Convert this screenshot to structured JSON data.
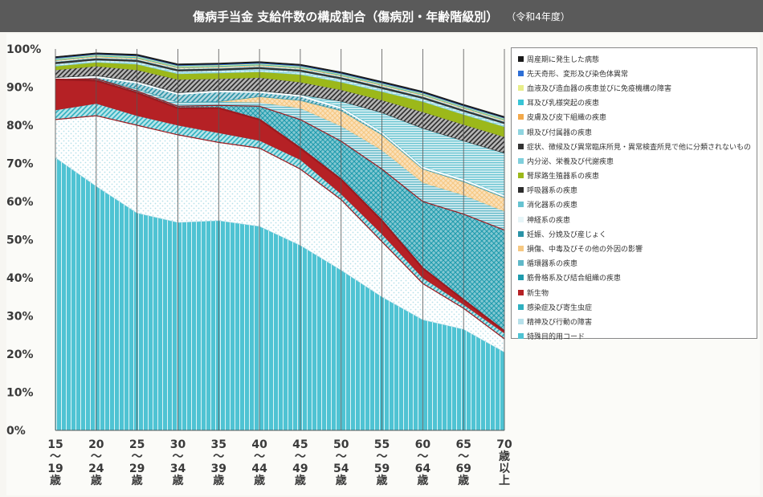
{
  "header": {
    "title": "傷病手当金 支給件数の構成割合（傷病別・年齢階級別）",
    "subtitle": "（令和4年度）"
  },
  "chart_data": {
    "type": "area",
    "title": "傷病手当金 支給件数の構成割合（傷病別・年齢階級別）",
    "subtitle": "（令和4年度）",
    "xlabel": "",
    "ylabel": "",
    "ylim": [
      0,
      100
    ],
    "y_ticks": [
      "0%",
      "10%",
      "20%",
      "30%",
      "40%",
      "50%",
      "60%",
      "70%",
      "80%",
      "90%",
      "100%"
    ],
    "categories": [
      "15〜19歳",
      "20〜24歳",
      "25〜29歳",
      "30〜34歳",
      "35〜39歳",
      "40〜44歳",
      "45〜49歳",
      "50〜54歳",
      "55〜59歳",
      "60〜64歳",
      "65〜69歳",
      "70歳以上"
    ],
    "category_labels": [
      [
        "15",
        "〜",
        "19",
        "歳"
      ],
      [
        "20",
        "〜",
        "24",
        "歳"
      ],
      [
        "25",
        "〜",
        "29",
        "歳"
      ],
      [
        "30",
        "〜",
        "34",
        "歳"
      ],
      [
        "35",
        "〜",
        "39",
        "歳"
      ],
      [
        "40",
        "〜",
        "44",
        "歳"
      ],
      [
        "45",
        "〜",
        "49",
        "歳"
      ],
      [
        "50",
        "〜",
        "54",
        "歳"
      ],
      [
        "55",
        "〜",
        "59",
        "歳"
      ],
      [
        "60",
        "〜",
        "64",
        "歳"
      ],
      [
        "65",
        "〜",
        "69",
        "歳"
      ],
      [
        "70",
        "歳",
        "以",
        "上"
      ]
    ],
    "stacking": "percent",
    "series": [
      {
        "name": "特殊目的用コード",
        "color": "#4fc3d3",
        "values": [
          71.5,
          64,
          57,
          54.5,
          55,
          53.5,
          48.5,
          42,
          35,
          29,
          26.5,
          20.5
        ]
      },
      {
        "name": "精神及び行動の障害",
        "color": "#b6e0ea",
        "values": [
          10,
          18.5,
          23,
          23,
          20.5,
          20.5,
          20,
          18.5,
          14.5,
          9.5,
          5.5,
          3.5
        ]
      },
      {
        "name": "感染症及び寄生虫症",
        "color": "#2fb0c0",
        "values": [
          2.5,
          3.2,
          2.5,
          2.5,
          2.5,
          2,
          2.5,
          1.5,
          2,
          1.5,
          1,
          1.5
        ]
      },
      {
        "name": "新生物",
        "color": "#b52125",
        "values": [
          8,
          6,
          6,
          4.5,
          6.5,
          5.5,
          3,
          3.8,
          3.5,
          2.5,
          1.2,
          0.5
        ]
      },
      {
        "name": "筋骨格系及び結合組織の疾患",
        "color": "#1e9bad",
        "values": [
          0,
          0.5,
          0.5,
          0.5,
          0.7,
          3.5,
          7.5,
          10,
          13.5,
          17.5,
          22.5,
          26.5
        ]
      },
      {
        "name": "循環器系の疾患",
        "color": "#5fb8c8",
        "values": [
          0,
          0,
          0.5,
          1,
          1,
          1,
          3,
          4,
          5,
          5,
          5,
          5
        ]
      },
      {
        "name": "損傷、中毒及びその他の外因の影響",
        "color": "#f6c882",
        "values": [
          0,
          0,
          0,
          0,
          0,
          1.5,
          2,
          4,
          4,
          3.5,
          3.5,
          3.5
        ]
      },
      {
        "name": "妊娠、分娩及び産じょく",
        "color": "#2a93a7",
        "values": [
          0,
          0.3,
          1.5,
          2,
          2.5,
          1,
          1,
          0.5,
          0.3,
          0.2,
          0.2,
          0.2
        ]
      },
      {
        "name": "神経系の疾患",
        "color": "#e6f5f8",
        "values": [
          0.5,
          0.5,
          0.5,
          0.5,
          0.5,
          0.5,
          0.5,
          0.5,
          0.5,
          0.5,
          0.5,
          0.5
        ]
      },
      {
        "name": "消化器系の疾患",
        "color": "#66c3d1",
        "values": [
          0,
          0,
          0,
          0,
          0,
          0,
          0,
          1.5,
          5,
          10,
          10,
          11
        ]
      },
      {
        "name": "呼吸器系の疾患",
        "color": "#2c2c2c",
        "values": [
          2,
          2.5,
          3,
          3.5,
          3,
          3.5,
          3.3,
          3,
          3.3,
          4.3,
          4.3,
          4.3
        ]
      },
      {
        "name": "腎尿路生殖器系の疾患",
        "color": "#9cb81a",
        "values": [
          1,
          1,
          1.5,
          1.5,
          1.5,
          1.5,
          2,
          2,
          2.2,
          2.7,
          2.6,
          2.6
        ]
      },
      {
        "name": "内分泌、栄養及び代謝疾患",
        "color": "#7fcfdc",
        "values": [
          0.6,
          0.6,
          0.7,
          0.7,
          0.7,
          0.8,
          0.8,
          0.8,
          0.8,
          0.8,
          0.8,
          0.8
        ]
      },
      {
        "name": "症状、徴候及び異常臨床所見・異常検査所見で他に分類されないもの",
        "color": "#333333",
        "values": [
          0.5,
          0.5,
          0.5,
          0.5,
          0.5,
          0.5,
          0.5,
          0.5,
          0.5,
          0.5,
          0.5,
          0.5
        ]
      },
      {
        "name": "眼及び付属器の疾患",
        "color": "#8fd5e0",
        "values": [
          0.3,
          0.3,
          0.3,
          0.3,
          0.3,
          0.3,
          0.3,
          0.3,
          0.3,
          0.3,
          0.3,
          0.3
        ]
      },
      {
        "name": "皮膚及び皮下組織の疾患",
        "color": "#f3a94a",
        "values": [
          0.2,
          0.2,
          0.2,
          0.2,
          0.2,
          0.2,
          0.2,
          0.2,
          0.2,
          0.2,
          0.2,
          0.2
        ]
      },
      {
        "name": "耳及び乳様突起の疾患",
        "color": "#39c5d6",
        "values": [
          0.2,
          0.2,
          0.2,
          0.2,
          0.2,
          0.2,
          0.2,
          0.2,
          0.2,
          0.2,
          0.2,
          0.2
        ]
      },
      {
        "name": "血液及び造血器の疾患並びに免疫機構の障害",
        "color": "#e8ee8a",
        "values": [
          0.2,
          0.2,
          0.2,
          0.2,
          0.2,
          0.2,
          0.2,
          0.2,
          0.2,
          0.2,
          0.2,
          0.2
        ]
      },
      {
        "name": "先天奇形、変形及び染色体異常",
        "color": "#2e6fd6",
        "values": [
          0.2,
          0.2,
          0.2,
          0.2,
          0.2,
          0.2,
          0.2,
          0.2,
          0.2,
          0.2,
          0.2,
          0.2
        ]
      },
      {
        "name": "周産期に発生した病態",
        "color": "#1a1a1a",
        "values": [
          0.3,
          0.3,
          0.3,
          0.3,
          0.3,
          0.3,
          0.3,
          0.3,
          0.3,
          0.3,
          0.3,
          0.3
        ]
      }
    ],
    "legend": {
      "position": "right",
      "order": [
        "周産期に発生した病態",
        "先天奇形、変形及び染色体異常",
        "血液及び造血器の疾患並びに免疫機構の障害",
        "耳及び乳様突起の疾患",
        "皮膚及び皮下組織の疾患",
        "眼及び付属器の疾患",
        "症状、徴候及び異常臨床所見・異常検査所見で他に分類されないもの",
        "内分泌、栄養及び代謝疾患",
        "腎尿路生殖器系の疾患",
        "呼吸器系の疾患",
        "消化器系の疾患",
        "神経系の疾患",
        "妊娠、分娩及び産じょく",
        "損傷、中毒及びその他の外因の影響",
        "循環器系の疾患",
        "筋骨格系及び結合組織の疾患",
        "新生物",
        "感染症及び寄生虫症",
        "精神及び行動の障害",
        "特殊目的用コード"
      ]
    },
    "grid": false,
    "vertical_category_lines": true
  }
}
